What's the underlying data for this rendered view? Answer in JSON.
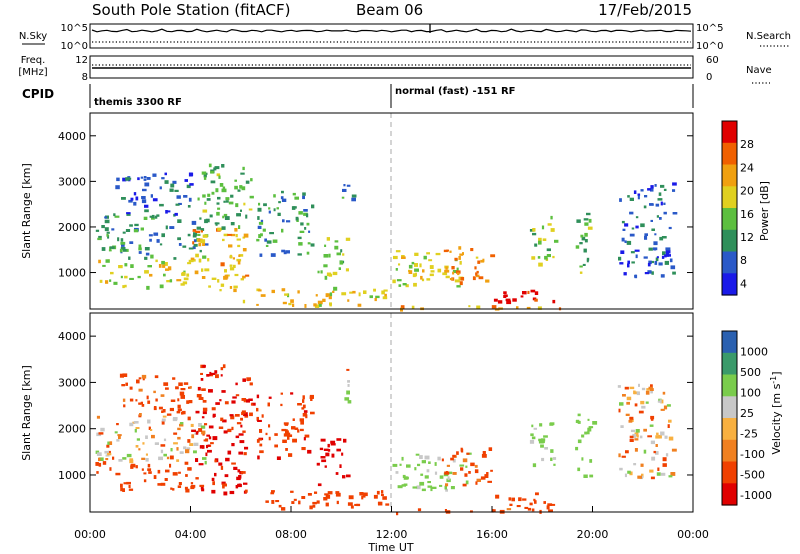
{
  "header": {
    "station": "South Pole Station (fitACF)",
    "beam": "Beam 06",
    "date": "17/Feb/2015"
  },
  "nsky_panel": {
    "left_label": "N.Sky",
    "left_ticks": [
      "10^5",
      "10^0"
    ],
    "right_label": "N.Search",
    "right_ticks": [
      "10^5",
      "10^0"
    ]
  },
  "freq_panel": {
    "left_label_line1": "Freq.",
    "left_label_line2": "[MHz]",
    "left_ticks": [
      "12",
      "8"
    ],
    "right_label": "Nave",
    "right_ticks": [
      "60",
      "0"
    ]
  },
  "cpid_panel": {
    "label": "CPID",
    "segments": [
      {
        "text": "themis 3300 RF",
        "start_hour": 0
      },
      {
        "text": "normal (fast) -151 RF",
        "start_hour": 12
      }
    ]
  },
  "chart_data": [
    {
      "type": "heatmap",
      "quantity": "power",
      "ylabel": "Slant Range [km]",
      "ylim": [
        200,
        4500
      ],
      "yticks": [
        1000,
        2000,
        3000,
        4000
      ],
      "xlim": [
        0,
        24
      ],
      "colorbar": {
        "label": "Power [dB]",
        "ticks": [
          "28",
          "24",
          "20",
          "16",
          "12",
          "8",
          "4"
        ],
        "range": [
          0,
          30
        ]
      },
      "regions": [
        {
          "t": [
            0.2,
            4.6
          ],
          "r": [
            1300,
            2300
          ],
          "value": 10
        },
        {
          "t": [
            1.0,
            4.0
          ],
          "r": [
            2300,
            3200
          ],
          "value": 6
        },
        {
          "t": [
            0.2,
            4.2
          ],
          "r": [
            700,
            1300
          ],
          "value": 16
        },
        {
          "t": [
            4.0,
            6.2
          ],
          "r": [
            600,
            2000
          ],
          "value": 20
        },
        {
          "t": [
            4.2,
            6.5
          ],
          "r": [
            2000,
            3400
          ],
          "value": 12
        },
        {
          "t": [
            6.6,
            8.8
          ],
          "r": [
            1400,
            2800
          ],
          "value": 10
        },
        {
          "t": [
            9.0,
            10.2
          ],
          "r": [
            800,
            1800
          ],
          "value": 14
        },
        {
          "t": [
            10.0,
            10.5
          ],
          "r": [
            2600,
            3300
          ],
          "value": 8
        },
        {
          "t": [
            6.0,
            11.8
          ],
          "r": [
            300,
            700
          ],
          "value": 18
        },
        {
          "t": [
            12.0,
            15.0
          ],
          "r": [
            700,
            1500
          ],
          "value": 16
        },
        {
          "t": [
            14.0,
            16.0
          ],
          "r": [
            800,
            1600
          ],
          "value": 22
        },
        {
          "t": [
            16.0,
            18.5
          ],
          "r": [
            300,
            650
          ],
          "value": 28
        },
        {
          "t": [
            17.5,
            18.5
          ],
          "r": [
            1200,
            2300
          ],
          "value": 14
        },
        {
          "t": [
            19.3,
            20.0
          ],
          "r": [
            1000,
            2400
          ],
          "value": 12
        },
        {
          "t": [
            21.0,
            23.2
          ],
          "r": [
            900,
            3000
          ],
          "value": 6
        },
        {
          "t": [
            12.0,
            19.0
          ],
          "r": [
            200,
            300
          ],
          "value": 20
        }
      ]
    },
    {
      "type": "heatmap",
      "quantity": "velocity",
      "ylabel": "Slant Range [km]",
      "ylim": [
        200,
        4500
      ],
      "yticks": [
        1000,
        2000,
        3000,
        4000
      ],
      "xlim": [
        0,
        24
      ],
      "xticks": [
        "00:00",
        "04:00",
        "08:00",
        "12:00",
        "16:00",
        "20:00",
        "00:00"
      ],
      "xlabel": "Time UT",
      "colorbar": {
        "label": "Velocity [m s^-1]",
        "ticks": [
          "1000",
          "500",
          "100",
          "25",
          "-25",
          "-100",
          "-500",
          "-1000"
        ],
        "range": [
          -1000,
          1000
        ]
      },
      "regions": [
        {
          "t": [
            0.2,
            4.6
          ],
          "r": [
            1300,
            2300
          ],
          "value": 0
        },
        {
          "t": [
            1.0,
            4.0
          ],
          "r": [
            2300,
            3200
          ],
          "value": -200
        },
        {
          "t": [
            0.2,
            4.2
          ],
          "r": [
            700,
            1300
          ],
          "value": -300
        },
        {
          "t": [
            4.0,
            6.2
          ],
          "r": [
            600,
            2000
          ],
          "value": -600
        },
        {
          "t": [
            4.2,
            6.5
          ],
          "r": [
            2000,
            3400
          ],
          "value": -500
        },
        {
          "t": [
            6.6,
            8.8
          ],
          "r": [
            1400,
            2800
          ],
          "value": -400
        },
        {
          "t": [
            9.0,
            10.2
          ],
          "r": [
            800,
            1800
          ],
          "value": -700
        },
        {
          "t": [
            10.0,
            10.5
          ],
          "r": [
            2600,
            3300
          ],
          "value": 0
        },
        {
          "t": [
            6.0,
            11.8
          ],
          "r": [
            300,
            700
          ],
          "value": -300
        },
        {
          "t": [
            12.0,
            15.0
          ],
          "r": [
            700,
            1500
          ],
          "value": 200
        },
        {
          "t": [
            14.0,
            16.0
          ],
          "r": [
            800,
            1600
          ],
          "value": -200
        },
        {
          "t": [
            16.0,
            18.5
          ],
          "r": [
            300,
            650
          ],
          "value": -300
        },
        {
          "t": [
            17.5,
            18.5
          ],
          "r": [
            1200,
            2300
          ],
          "value": 200
        },
        {
          "t": [
            19.3,
            20.0
          ],
          "r": [
            1000,
            2400
          ],
          "value": 300
        },
        {
          "t": [
            21.0,
            23.2
          ],
          "r": [
            900,
            3000
          ],
          "value": 0
        },
        {
          "t": [
            12.0,
            19.0
          ],
          "r": [
            200,
            300
          ],
          "value": -200
        }
      ]
    }
  ]
}
